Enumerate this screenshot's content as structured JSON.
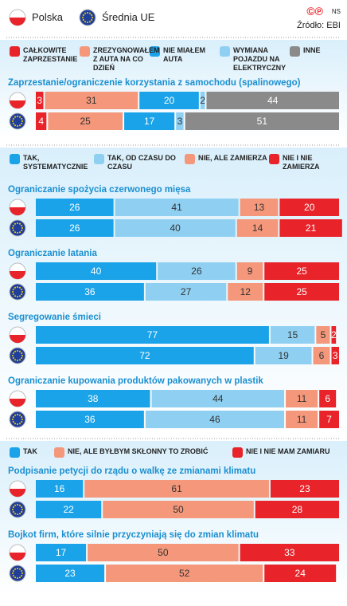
{
  "header": {
    "legend": [
      "Polska",
      "Średnia UE"
    ],
    "logo_marks": "©℗",
    "logo": "NS",
    "source": "Źródło: EBI"
  },
  "chart_data": [
    {
      "type": "bar",
      "stacked": true,
      "orientation": "horizontal",
      "xlim": [
        0,
        100
      ],
      "legend": [
        {
          "name": "CAŁKOWITE ZAPRZESTANIE",
          "color": "#e8232a"
        },
        {
          "name": "ZREZYGNOWAŁEM Z AUTA NA CO DZIEŃ",
          "color": "#f4977a"
        },
        {
          "name": "NIE MIAŁEM AUTA",
          "color": "#1aa3e8"
        },
        {
          "name": "WYMIANA POJAZDU NA ELEKTRYCZNY",
          "color": "#8fd0f2"
        },
        {
          "name": "INNE",
          "color": "#8a8a8a"
        }
      ],
      "groups": [
        {
          "title": "Zaprzestanie/ograniczenie korzystania z samochodu (spalinowego)",
          "rows": [
            [
              3,
              31,
              20,
              2,
              44
            ],
            [
              4,
              25,
              17,
              3,
              51
            ]
          ]
        }
      ]
    },
    {
      "type": "bar",
      "stacked": true,
      "orientation": "horizontal",
      "xlim": [
        0,
        100
      ],
      "legend": [
        {
          "name": "TAK, SYSTEMATYCZNIE",
          "color": "#1aa3e8"
        },
        {
          "name": "TAK, OD CZASU DO CZASU",
          "color": "#8fd0f2"
        },
        {
          "name": "NIE, ALE ZAMIERZA",
          "color": "#f4977a"
        },
        {
          "name": "NIE I NIE ZAMIERZA",
          "color": "#e8232a"
        }
      ],
      "groups": [
        {
          "title": "Ograniczanie spożycia czerwonego mięsa",
          "rows": [
            [
              26,
              41,
              13,
              20
            ],
            [
              26,
              40,
              14,
              21
            ]
          ]
        },
        {
          "title": "Ograniczanie latania",
          "rows": [
            [
              40,
              26,
              9,
              25
            ],
            [
              36,
              27,
              12,
              25
            ]
          ]
        },
        {
          "title": "Segregowanie śmieci",
          "rows": [
            [
              77,
              15,
              5,
              2
            ],
            [
              72,
              19,
              6,
              3
            ]
          ]
        },
        {
          "title": "Ograniczanie kupowania produktów pakowanych w plastik",
          "rows": [
            [
              38,
              44,
              11,
              6
            ],
            [
              36,
              46,
              11,
              7
            ]
          ]
        }
      ]
    },
    {
      "type": "bar",
      "stacked": true,
      "orientation": "horizontal",
      "xlim": [
        0,
        100
      ],
      "legend": [
        {
          "name": "TAK",
          "color": "#1aa3e8"
        },
        {
          "name": "NIE, ALE BYŁBYM SKŁONNY TO ZROBIĆ",
          "color": "#f4977a"
        },
        {
          "name": "NIE I NIE MAM ZAMIARU",
          "color": "#e8232a"
        }
      ],
      "groups": [
        {
          "title": "Podpisanie petycji do rządu o walkę ze zmianami klimatu",
          "rows": [
            [
              16,
              61,
              23
            ],
            [
              22,
              50,
              28
            ]
          ]
        },
        {
          "title": "Bojkot firm, które silnie przyczyniają się do zmian klimatu",
          "rows": [
            [
              17,
              50,
              33
            ],
            [
              23,
              52,
              24
            ]
          ]
        }
      ]
    }
  ]
}
